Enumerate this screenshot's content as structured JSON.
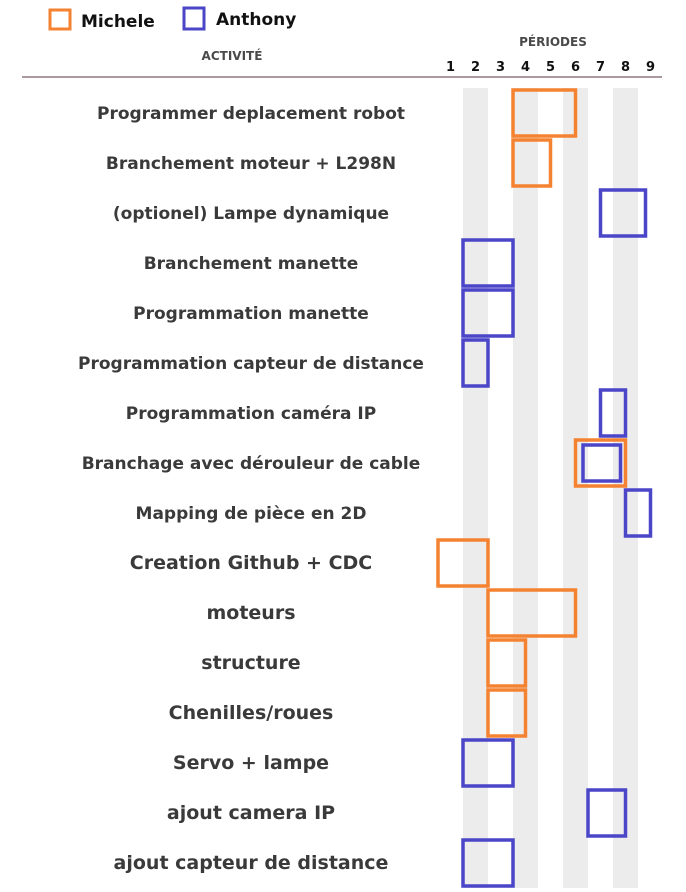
{
  "chart_data": {
    "type": "gantt",
    "title": "",
    "xlabel": "PÉRIODES",
    "ylabel": "ACTIVITÉ",
    "periods": [
      "1",
      "2",
      "3",
      "4",
      "5",
      "6",
      "7",
      "8",
      "9"
    ],
    "xlim": [
      1,
      9
    ],
    "grid": true,
    "legend_position": "top-left",
    "series": [
      {
        "name": "Michele",
        "color": "#f58231"
      },
      {
        "name": "Anthony",
        "color": "#4b45c8"
      }
    ],
    "activities": [
      {
        "label": "Programmer deplacement robot",
        "bars": [
          {
            "series": 0,
            "start": 4,
            "end": 6.5
          }
        ]
      },
      {
        "label": "Branchement moteur + L298N",
        "bars": [
          {
            "series": 0,
            "start": 4,
            "end": 5.5
          }
        ]
      },
      {
        "label": "(optionel) Lampe dynamique",
        "bars": [
          {
            "series": 1,
            "start": 7.5,
            "end": 9.3
          }
        ]
      },
      {
        "label": "Branchement manette",
        "bars": [
          {
            "series": 1,
            "start": 2,
            "end": 4
          }
        ]
      },
      {
        "label": "Programmation manette",
        "bars": [
          {
            "series": 1,
            "start": 2,
            "end": 4
          }
        ]
      },
      {
        "label": "Programmation capteur de distance",
        "bars": [
          {
            "series": 1,
            "start": 2,
            "end": 3
          }
        ]
      },
      {
        "label": "Programmation caméra IP",
        "bars": [
          {
            "series": 1,
            "start": 7.5,
            "end": 8.5
          }
        ]
      },
      {
        "label": "Branchage avec dérouleur de cable",
        "bars": [
          {
            "series": 0,
            "start": 6.5,
            "end": 8.5
          },
          {
            "series": 1,
            "start": 6.8,
            "end": 8.3
          }
        ]
      },
      {
        "label": "Mapping de pièce en 2D",
        "bars": [
          {
            "series": 1,
            "start": 8.5,
            "end": 9.5
          }
        ]
      },
      {
        "label": "Creation Github + CDC",
        "bars": [
          {
            "series": 0,
            "start": 1,
            "end": 3
          }
        ]
      },
      {
        "label": "moteurs",
        "bars": [
          {
            "series": 0,
            "start": 3,
            "end": 6.5
          }
        ]
      },
      {
        "label": "structure",
        "bars": [
          {
            "series": 0,
            "start": 3,
            "end": 4.5
          }
        ]
      },
      {
        "label": "Chenilles/roues",
        "bars": [
          {
            "series": 0,
            "start": 3,
            "end": 4.5
          }
        ]
      },
      {
        "label": "Servo + lampe",
        "bars": [
          {
            "series": 1,
            "start": 2,
            "end": 4
          }
        ]
      },
      {
        "label": "ajout camera IP",
        "bars": [
          {
            "series": 1,
            "start": 7,
            "end": 8.5
          }
        ]
      },
      {
        "label": "ajout capteur de distance",
        "bars": [
          {
            "series": 1,
            "start": 2,
            "end": 4
          }
        ]
      }
    ]
  }
}
